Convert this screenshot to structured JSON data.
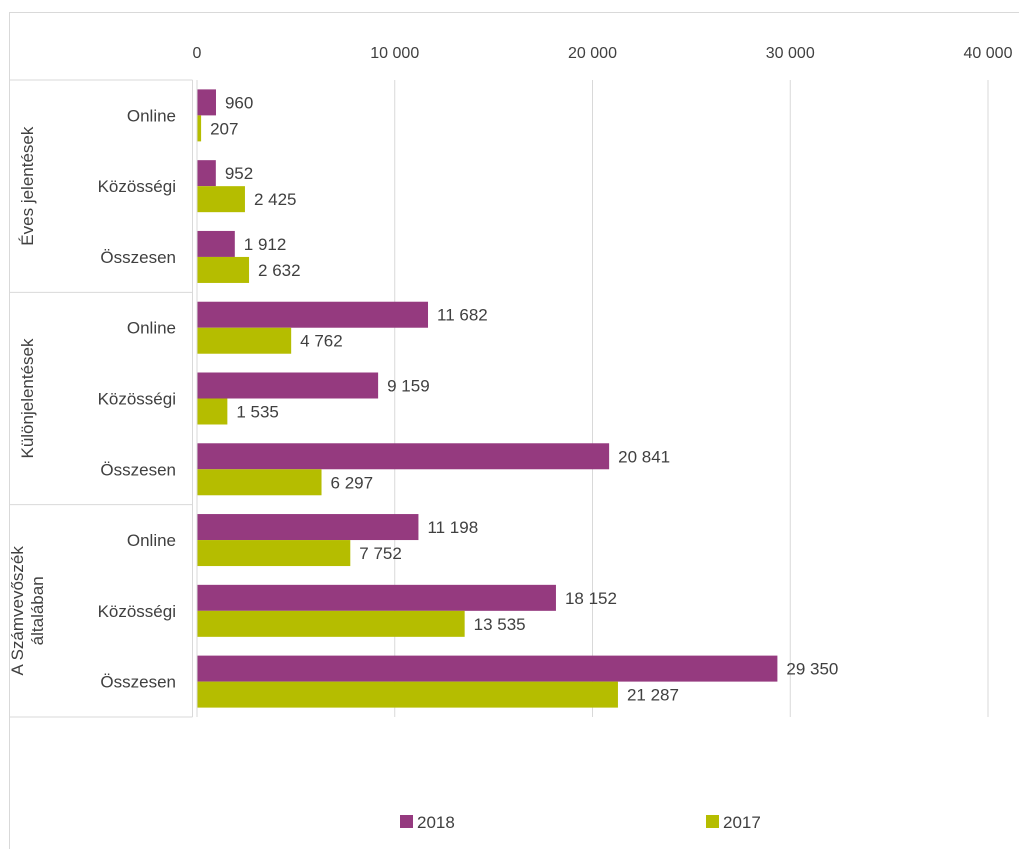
{
  "chart_data": {
    "type": "bar",
    "orientation": "horizontal",
    "groups": [
      {
        "name": "Éves jelentések",
        "lines": [
          "Éves jelentések"
        ]
      },
      {
        "name": "Különjelentések",
        "lines": [
          "Különjelentések"
        ]
      },
      {
        "name": "A Számvevőszék általában",
        "lines": [
          "A Számvevőszék",
          "általában"
        ]
      }
    ],
    "categories": [
      "Online",
      "Közösségi",
      "Összesen",
      "Online",
      "Közösségi",
      "Összesen",
      "Online",
      "Közösségi",
      "Összesen"
    ],
    "series": [
      {
        "name": "2018",
        "color": "#953a7f",
        "values": [
          960,
          952,
          1912,
          11682,
          9159,
          20841,
          11198,
          18152,
          29350
        ],
        "labels": [
          "960",
          "952",
          "1 912",
          "11 682",
          "9 159",
          "20 841",
          "11 198",
          "18 152",
          "29 350"
        ]
      },
      {
        "name": "2017",
        "color": "#b5bd00",
        "values": [
          207,
          2425,
          2632,
          4762,
          1535,
          6297,
          7752,
          13535,
          21287
        ],
        "labels": [
          "207",
          "2 425",
          "2 632",
          "4 762",
          "1 535",
          "6 297",
          "7 752",
          "13 535",
          "21 287"
        ]
      }
    ],
    "xlim": [
      0,
      40000
    ],
    "xticks": [
      0,
      10000,
      20000,
      30000,
      40000
    ],
    "xtick_labels": [
      "0",
      "10 000",
      "20 000",
      "30 000",
      "40 000"
    ],
    "axis_position": "top",
    "grid": true,
    "legend_position": "bottom"
  }
}
